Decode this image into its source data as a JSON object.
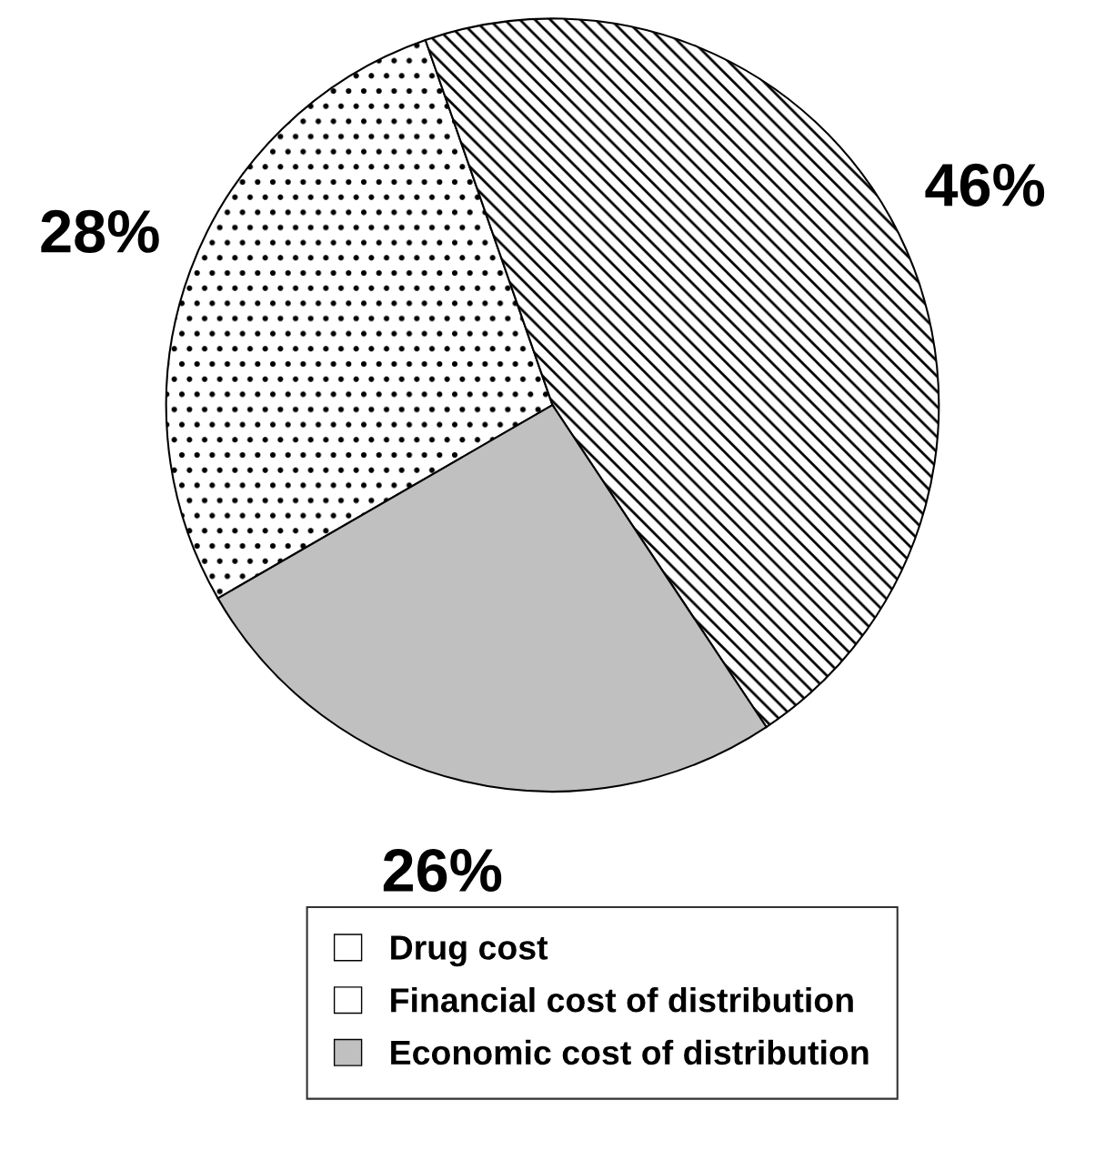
{
  "chart_data": {
    "type": "pie",
    "categories": [
      "Drug cost",
      "Financial cost of distribution",
      "Economic cost of distribution"
    ],
    "values": [
      28,
      46,
      26
    ],
    "colors": [
      "#ffffff",
      "#ffffff",
      "#c0c0c0"
    ],
    "value_labels": [
      "28%",
      "46%",
      "26%"
    ],
    "legend": "bottom"
  }
}
